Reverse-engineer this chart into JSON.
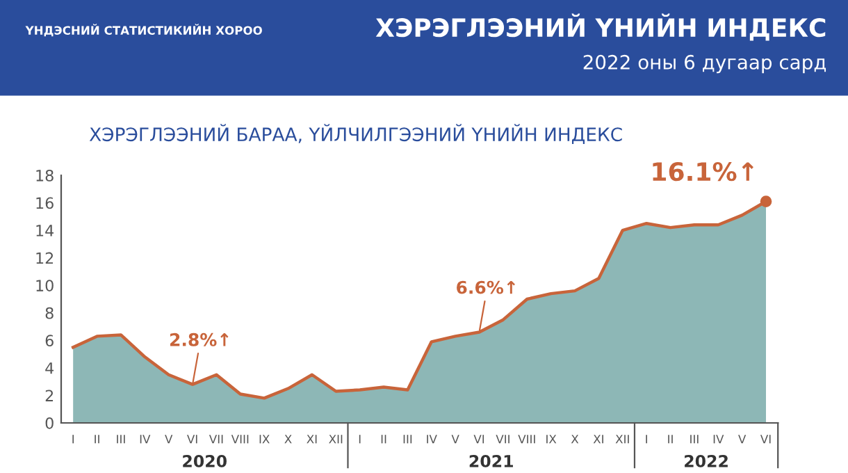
{
  "chart_data": {
    "type": "area",
    "title": "ХЭРЭГЛЭЭНИЙ ҮНИЙН ИНДЕКС",
    "subtitle": "2022 оны 6 дугаар сард",
    "categories": [
      "I",
      "II",
      "III",
      "IV",
      "V",
      "VI",
      "VII",
      "VIII",
      "IX",
      "X",
      "XI",
      "XII",
      "I",
      "II",
      "III",
      "IV",
      "V",
      "VI",
      "VII",
      "VIII",
      "IX",
      "X",
      "XI",
      "XII",
      "I",
      "II",
      "III",
      "IV",
      "V",
      "VI"
    ],
    "series": [
      {
        "color": "#8db7b6",
        "values": [
          5.5,
          6.3,
          6.4,
          4.8,
          3.5,
          2.8,
          3.5,
          2.1,
          1.8,
          2.5,
          3.5,
          2.3,
          2.4,
          2.6,
          2.4,
          5.9,
          6.3,
          6.6,
          7.5,
          9.0,
          9.4,
          9.6,
          10.5,
          14.0,
          14.5,
          14.2,
          14.4,
          14.4,
          15.1,
          16.1
        ]
      },
      {
        "type": "line",
        "color": "#c8643a",
        "values": [
          5.5,
          6.3,
          6.4,
          4.8,
          3.5,
          2.8,
          3.5,
          2.1,
          1.8,
          2.5,
          3.5,
          2.3,
          2.4,
          2.6,
          2.4,
          5.9,
          6.3,
          6.6,
          7.5,
          9.0,
          9.4,
          9.6,
          10.5,
          14.0,
          14.5,
          14.2,
          14.4,
          14.4,
          15.1,
          16.1
        ],
        "value_labels": [
          null,
          null,
          null,
          null,
          null,
          "2.8%↑",
          null,
          null,
          null,
          null,
          null,
          null,
          null,
          null,
          null,
          null,
          null,
          "6.6%↑",
          null,
          null,
          null,
          null,
          null,
          null,
          null,
          null,
          null,
          null,
          null,
          "16.1%↑"
        ]
      }
    ],
    "ylim": [
      0,
      18
    ],
    "yticks": [
      0,
      2,
      4,
      6,
      8,
      10,
      12,
      14,
      16,
      18
    ],
    "grid": false,
    "legend": false,
    "marker": "none",
    "line_style": "solid",
    "annotations": [
      "ҮНДЭСНИЙ СТАТИСТИКИЙН ХОРОО",
      "ХЭРЭГЛЭЭНИЙ БАРАА, ҮЙЛЧИЛГЭЭНИЙ ҮНИЙН ИНДЕКС",
      "2020",
      "2021",
      "2022"
    ]
  }
}
